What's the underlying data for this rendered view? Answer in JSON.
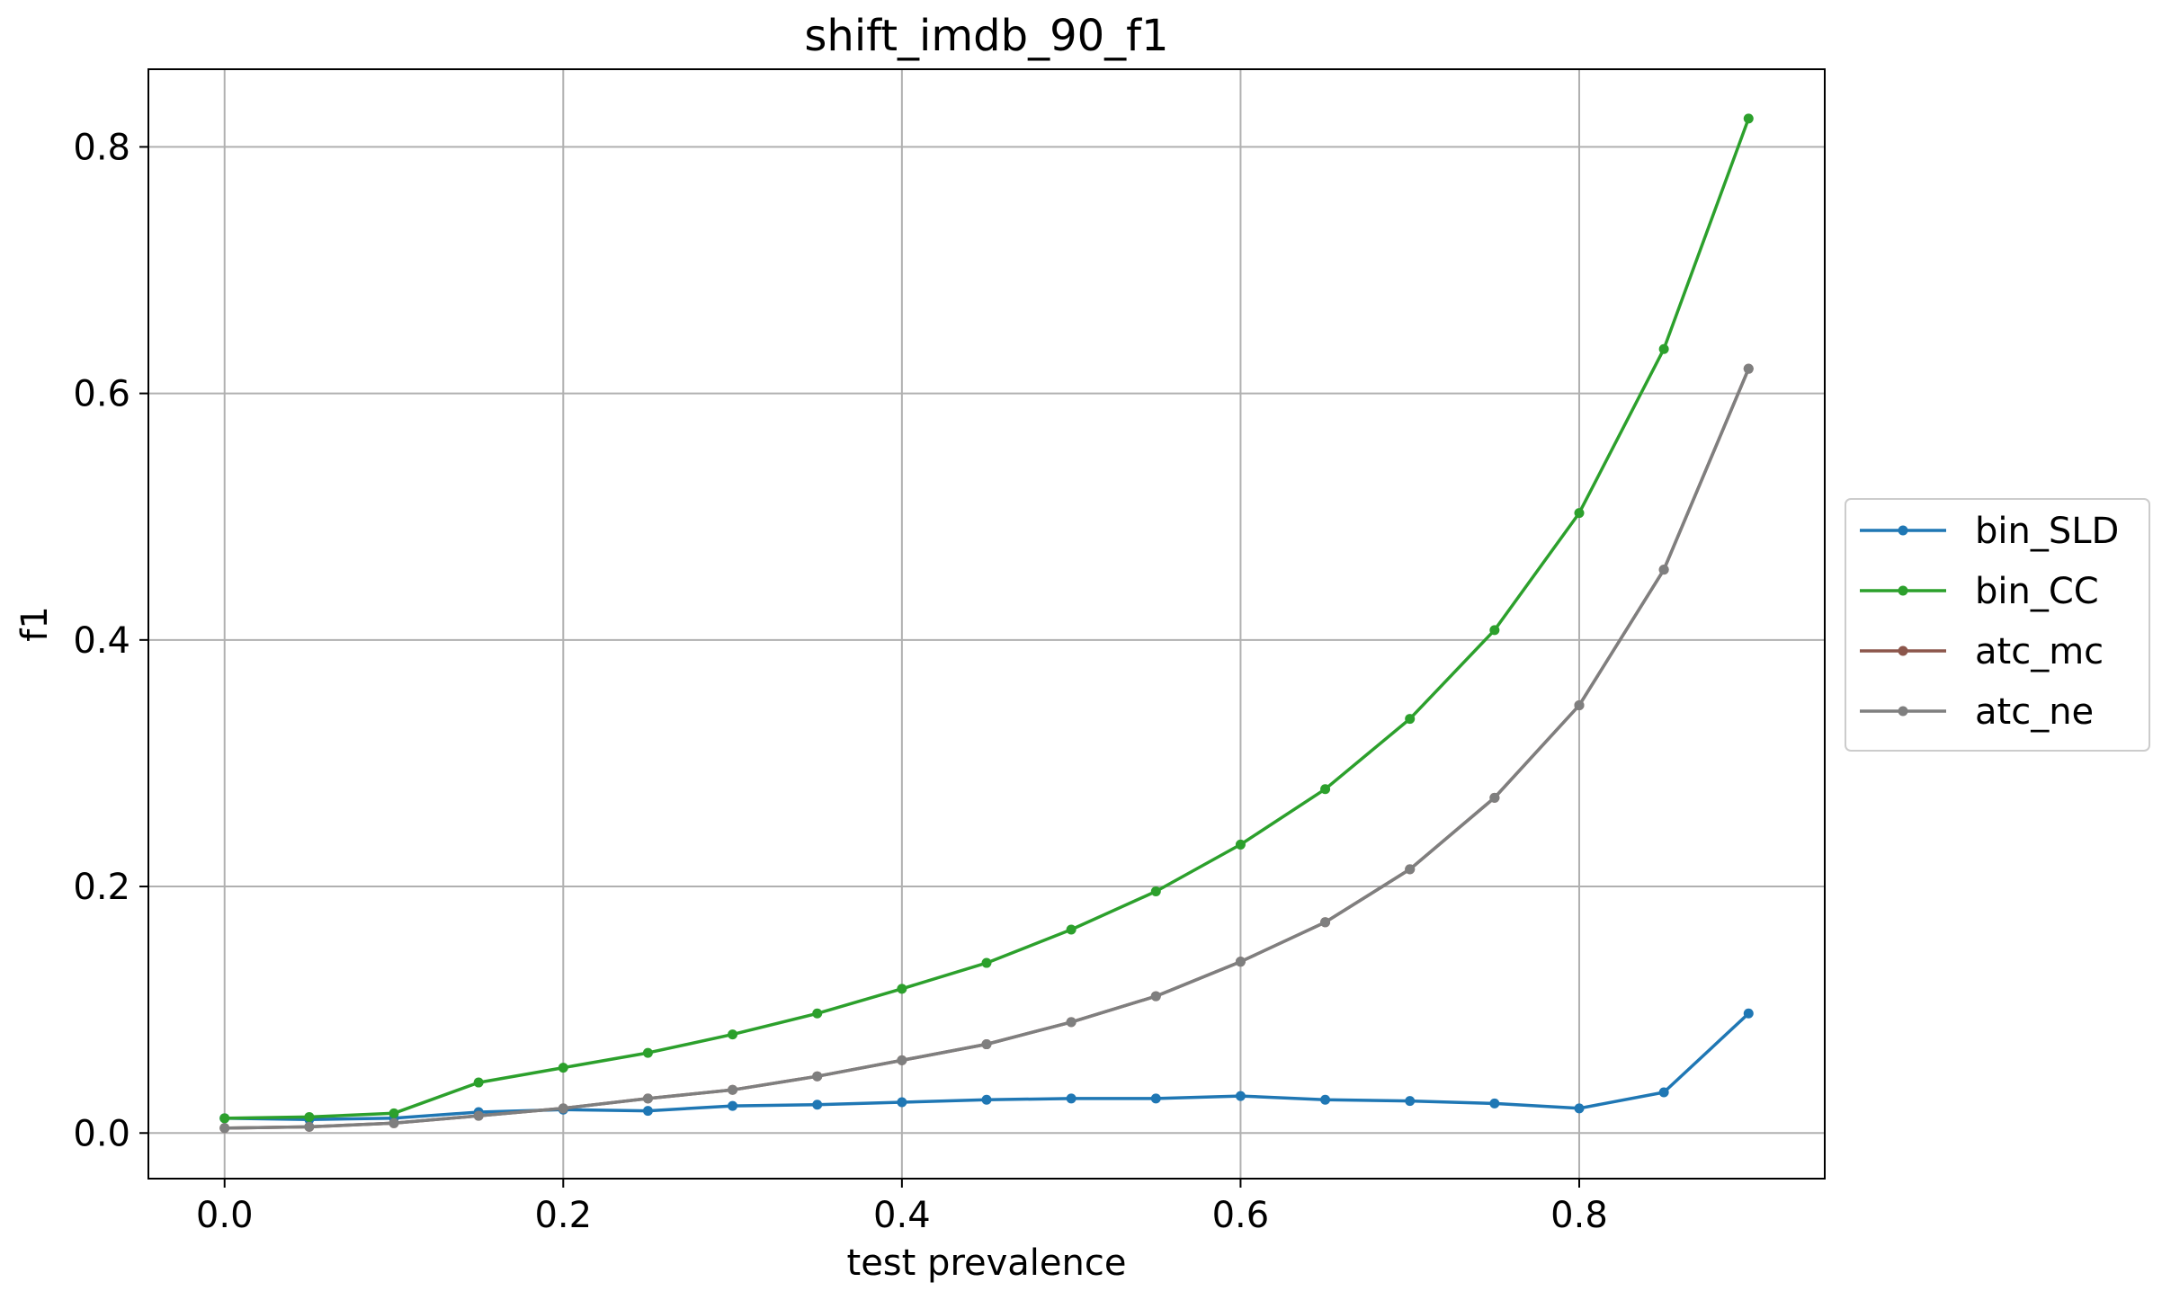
{
  "chart_data": {
    "type": "line",
    "title": "shift_imdb_90_f1",
    "xlabel": "test prevalence",
    "ylabel": "f1",
    "xlim": [
      -0.045,
      0.945
    ],
    "ylim": [
      -0.037,
      0.863
    ],
    "xticks": [
      0.0,
      0.2,
      0.4,
      0.6,
      0.8
    ],
    "xtick_labels": [
      "0.0",
      "0.2",
      "0.4",
      "0.6",
      "0.8"
    ],
    "yticks": [
      0.0,
      0.2,
      0.4,
      0.6,
      0.8
    ],
    "ytick_labels": [
      "0.0",
      "0.2",
      "0.4",
      "0.6",
      "0.8"
    ],
    "grid": true,
    "legend_position": "center-right-outside",
    "x": [
      0.0,
      0.05,
      0.1,
      0.15,
      0.2,
      0.25,
      0.3,
      0.35,
      0.4,
      0.45,
      0.5,
      0.55,
      0.6,
      0.65,
      0.7,
      0.75,
      0.8,
      0.85,
      0.9
    ],
    "series": [
      {
        "name": "bin_SLD",
        "color": "#1f77b4",
        "values": [
          0.012,
          0.011,
          0.012,
          0.017,
          0.019,
          0.018,
          0.022,
          0.023,
          0.025,
          0.027,
          0.028,
          0.028,
          0.03,
          0.027,
          0.026,
          0.024,
          0.02,
          0.033,
          0.097
        ]
      },
      {
        "name": "bin_CC",
        "color": "#2ca02c",
        "values": [
          0.012,
          0.013,
          0.016,
          0.041,
          0.053,
          0.065,
          0.08,
          0.097,
          0.117,
          0.138,
          0.165,
          0.196,
          0.234,
          0.279,
          0.336,
          0.408,
          0.503,
          0.636,
          0.823
        ]
      },
      {
        "name": "atc_mc",
        "color": "#8c564b",
        "values": [
          0.004,
          0.005,
          0.008,
          0.014,
          0.02,
          0.028,
          0.035,
          0.046,
          0.059,
          0.072,
          0.09,
          0.111,
          0.139,
          0.171,
          0.214,
          0.272,
          0.347,
          0.457,
          0.62
        ]
      },
      {
        "name": "atc_ne",
        "color": "#7f7f7f",
        "values": [
          0.004,
          0.005,
          0.008,
          0.014,
          0.02,
          0.028,
          0.035,
          0.046,
          0.059,
          0.072,
          0.09,
          0.111,
          0.139,
          0.171,
          0.214,
          0.272,
          0.347,
          0.457,
          0.62
        ]
      }
    ]
  }
}
